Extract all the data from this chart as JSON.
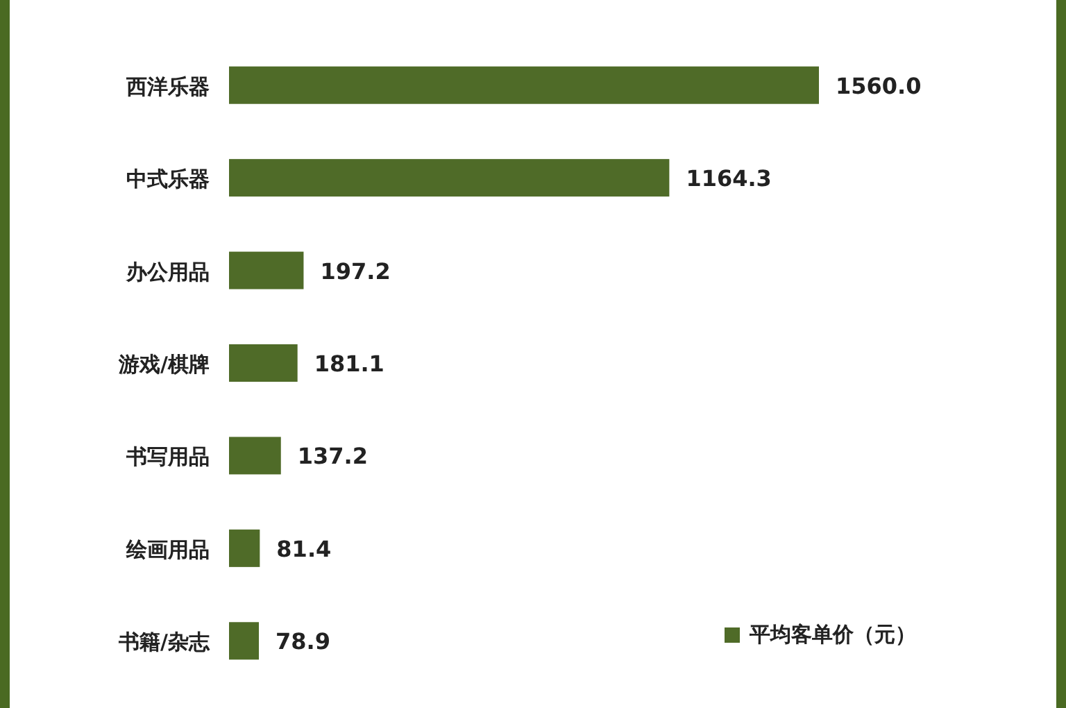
{
  "chart_data": {
    "type": "bar",
    "orientation": "horizontal",
    "categories": [
      "西洋乐器",
      "中式乐器",
      "办公用品",
      "游戏/棋牌",
      "书写用品",
      "绘画用品",
      "书籍/杂志"
    ],
    "series": [
      {
        "name": "平均客单价（元）",
        "color": "#4f6b28",
        "values": [
          1560.0,
          1164.3,
          197.2,
          181.1,
          137.2,
          81.4,
          78.9
        ],
        "value_labels": [
          "1560.0",
          "1164.3",
          "197.2",
          "181.1",
          "137.2",
          "81.4",
          "78.9"
        ]
      }
    ],
    "legend": "bottom right",
    "tick_labels": "y"
  }
}
